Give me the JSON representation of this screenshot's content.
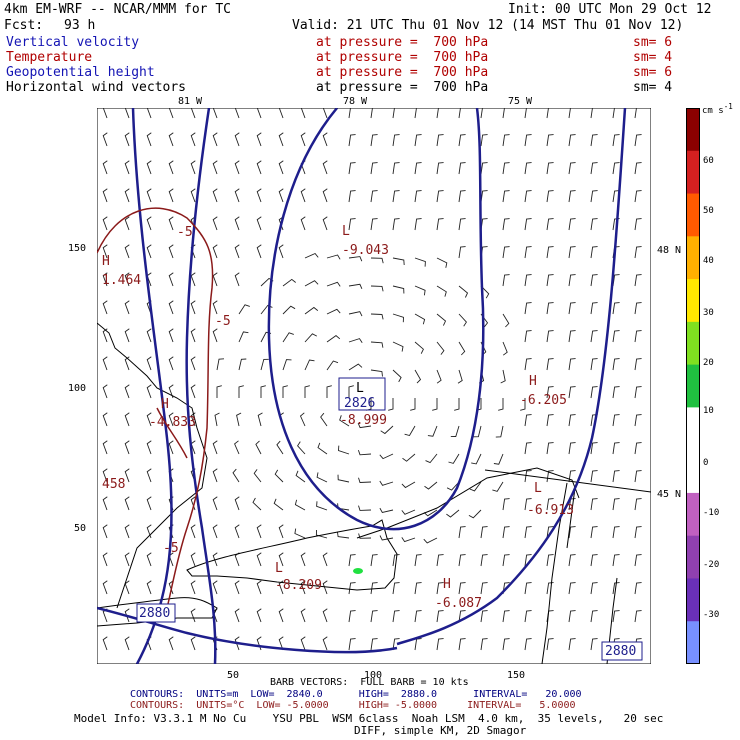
{
  "header": {
    "model": "4km EM-WRF -- NCAR/MMM for TC",
    "init": "Init: 00 UTC Mon 29 Oct 12",
    "fcst_label": "Fcst:",
    "fcst_value": "93 h",
    "valid": "Valid: 21 UTC Thu 01 Nov 12 (14 MST Thu 01 Nov 12)"
  },
  "fields": [
    {
      "name": "Vertical velocity",
      "level": "at pressure =  700 hPa",
      "sm": "sm= 6",
      "color": "#1414b4"
    },
    {
      "name": "Temperature",
      "level": "at pressure =  700 hPa",
      "sm": "sm= 4",
      "color": "#b00000"
    },
    {
      "name": "Geopotential height",
      "level": "at pressure =  700 hPa",
      "sm": "sm= 6",
      "color": "#1414b4"
    },
    {
      "name": "Horizontal wind vectors",
      "level": "at pressure =  700 hPa",
      "sm": "sm= 4",
      "color": "#000000"
    }
  ],
  "map": {
    "lon_labels": [
      "81 W",
      "78 W",
      "75 W"
    ],
    "lat_labels": [
      "48 N",
      "45 N"
    ],
    "y_ticks": [
      "150",
      "100",
      "50"
    ],
    "x_ticks": [
      "50",
      "100",
      "150"
    ],
    "height_contour_color": "#1e1e8c",
    "temp_contour_color": "#8b1a1a",
    "annotations": {
      "L_top_symbol": "L",
      "L_top_value": "-9.043",
      "H_left_symbol": "H",
      "H_left_value": "1.464",
      "minus5_top": "-5",
      "minus5_mid": "-5",
      "minus5_low": "-5",
      "H_mid_symbol": "H",
      "H_mid_value": "-4.833",
      "val_left": "458",
      "L_center_symbol": "L",
      "L_center_box": "2826",
      "L_center_value": "-8.999",
      "H_right_symbol": "H",
      "H_right_value": "-6.205",
      "L_right_symbol": "L",
      "L_right_value": "-6.913",
      "L_lake_symbol": "L",
      "L_lake_value": "-8.209",
      "H_lake_symbol": "H",
      "H_lake_value": "-6.087",
      "box_left": "2880",
      "box_right": "2880"
    }
  },
  "colorbar": {
    "unit": "cm s",
    "unit_sup": "-1",
    "labels": [
      "60",
      "50",
      "40",
      "30",
      "20",
      "10",
      "0",
      "-10",
      "-20",
      "-30"
    ],
    "colors": [
      "#8b0000",
      "#d42020",
      "#ff5a00",
      "#ffb000",
      "#ffe800",
      "#80e020",
      "#20c040",
      "#ffffff",
      "#ffffff",
      "#c060c0",
      "#9040b0",
      "#6a30b8",
      "#7890ff"
    ]
  },
  "footer": {
    "barb": "BARB VECTORS:  FULL BARB = 10 kts",
    "contours1": "CONTOURS:  UNITS=m  LOW=  2840.0      HIGH=  2880.0      INTERVAL=   20.000",
    "contours2": "CONTOURS:  UNITS=°C  LOW= -5.0000     HIGH= -5.0000     INTERVAL=   5.0000",
    "model_info": "Model Info: V3.3.1 M No Cu    YSU PBL  WSM 6class  Noah LSM  4.0 km,  35 levels,   20 sec",
    "diff": "DIFF, simple KM, 2D Smagor"
  }
}
